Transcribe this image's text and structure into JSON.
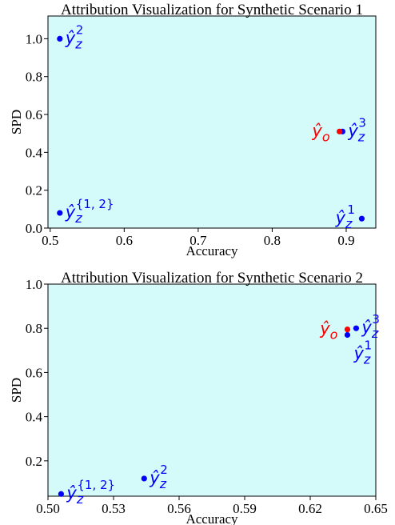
{
  "chart_data": [
    {
      "type": "scatter",
      "title": "Attribution Visualization for Synthetic Scenario 1",
      "xlabel": "Accuracy",
      "ylabel": "SPD",
      "xlim": [
        0.497,
        0.94
      ],
      "ylim": [
        0.0,
        1.12
      ],
      "xticks": [
        "0.5",
        "0.6",
        "0.7",
        "0.8",
        "0.9"
      ],
      "xtick_values": [
        0.5,
        0.6,
        0.7,
        0.8,
        0.9
      ],
      "yticks": [
        "0.0",
        "0.2",
        "0.4",
        "0.6",
        "0.8",
        "1.0"
      ],
      "ytick_values": [
        0.0,
        0.2,
        0.4,
        0.6,
        0.8,
        1.0
      ],
      "background_color": "#d4fafa",
      "points": [
        {
          "x": 0.513,
          "y": 1.0,
          "base": "ŷ",
          "sub": "z",
          "sup": "2",
          "color": "#0000ff",
          "label_pos": "right"
        },
        {
          "x": 0.513,
          "y": 0.08,
          "base": "ŷ",
          "sub": "z",
          "sup": "{1, 2}",
          "color": "#0000ff",
          "label_pos": "right"
        },
        {
          "x": 0.895,
          "y": 0.51,
          "base": "ŷ",
          "sub": "z",
          "sup": "3",
          "color": "#0000ff",
          "label_pos": "right"
        },
        {
          "x": 0.921,
          "y": 0.05,
          "base": "ŷ",
          "sub": "z",
          "sup": "1",
          "color": "#0000ff",
          "label_pos": "left"
        },
        {
          "x": 0.891,
          "y": 0.51,
          "base": "ŷ",
          "sub": "o",
          "sup": "",
          "color": "#ff0000",
          "label_pos": "left"
        }
      ]
    },
    {
      "type": "scatter",
      "title": "Attribution Visualization for Synthetic Scenario 2",
      "xlabel": "Accuracy",
      "ylabel": "SPD",
      "xlim": [
        0.5,
        0.65
      ],
      "ylim": [
        0.04,
        1.0
      ],
      "xticks": [
        "0.50",
        "0.53",
        "0.56",
        "0.59",
        "0.62",
        "0.65"
      ],
      "xtick_values": [
        0.5,
        0.53,
        0.56,
        0.59,
        0.62,
        0.65
      ],
      "yticks": [
        "0.2",
        "0.4",
        "0.6",
        "0.8",
        "1.0"
      ],
      "ytick_values": [
        0.2,
        0.4,
        0.6,
        0.8,
        1.0
      ],
      "background_color": "#d4fafa",
      "points": [
        {
          "x": 0.506,
          "y": 0.05,
          "base": "ŷ",
          "sub": "z",
          "sup": "{1, 2}",
          "color": "#0000ff",
          "label_pos": "right"
        },
        {
          "x": 0.544,
          "y": 0.12,
          "base": "ŷ",
          "sub": "z",
          "sup": "2",
          "color": "#0000ff",
          "label_pos": "right"
        },
        {
          "x": 0.637,
          "y": 0.77,
          "base": "ŷ",
          "sub": "z",
          "sup": "1",
          "color": "#0000ff",
          "label_pos": "below-right"
        },
        {
          "x": 0.641,
          "y": 0.8,
          "base": "ŷ",
          "sub": "z",
          "sup": "3",
          "color": "#0000ff",
          "label_pos": "right"
        },
        {
          "x": 0.637,
          "y": 0.795,
          "base": "ŷ",
          "sub": "o",
          "sup": "",
          "color": "#ff0000",
          "label_pos": "left"
        }
      ]
    }
  ]
}
